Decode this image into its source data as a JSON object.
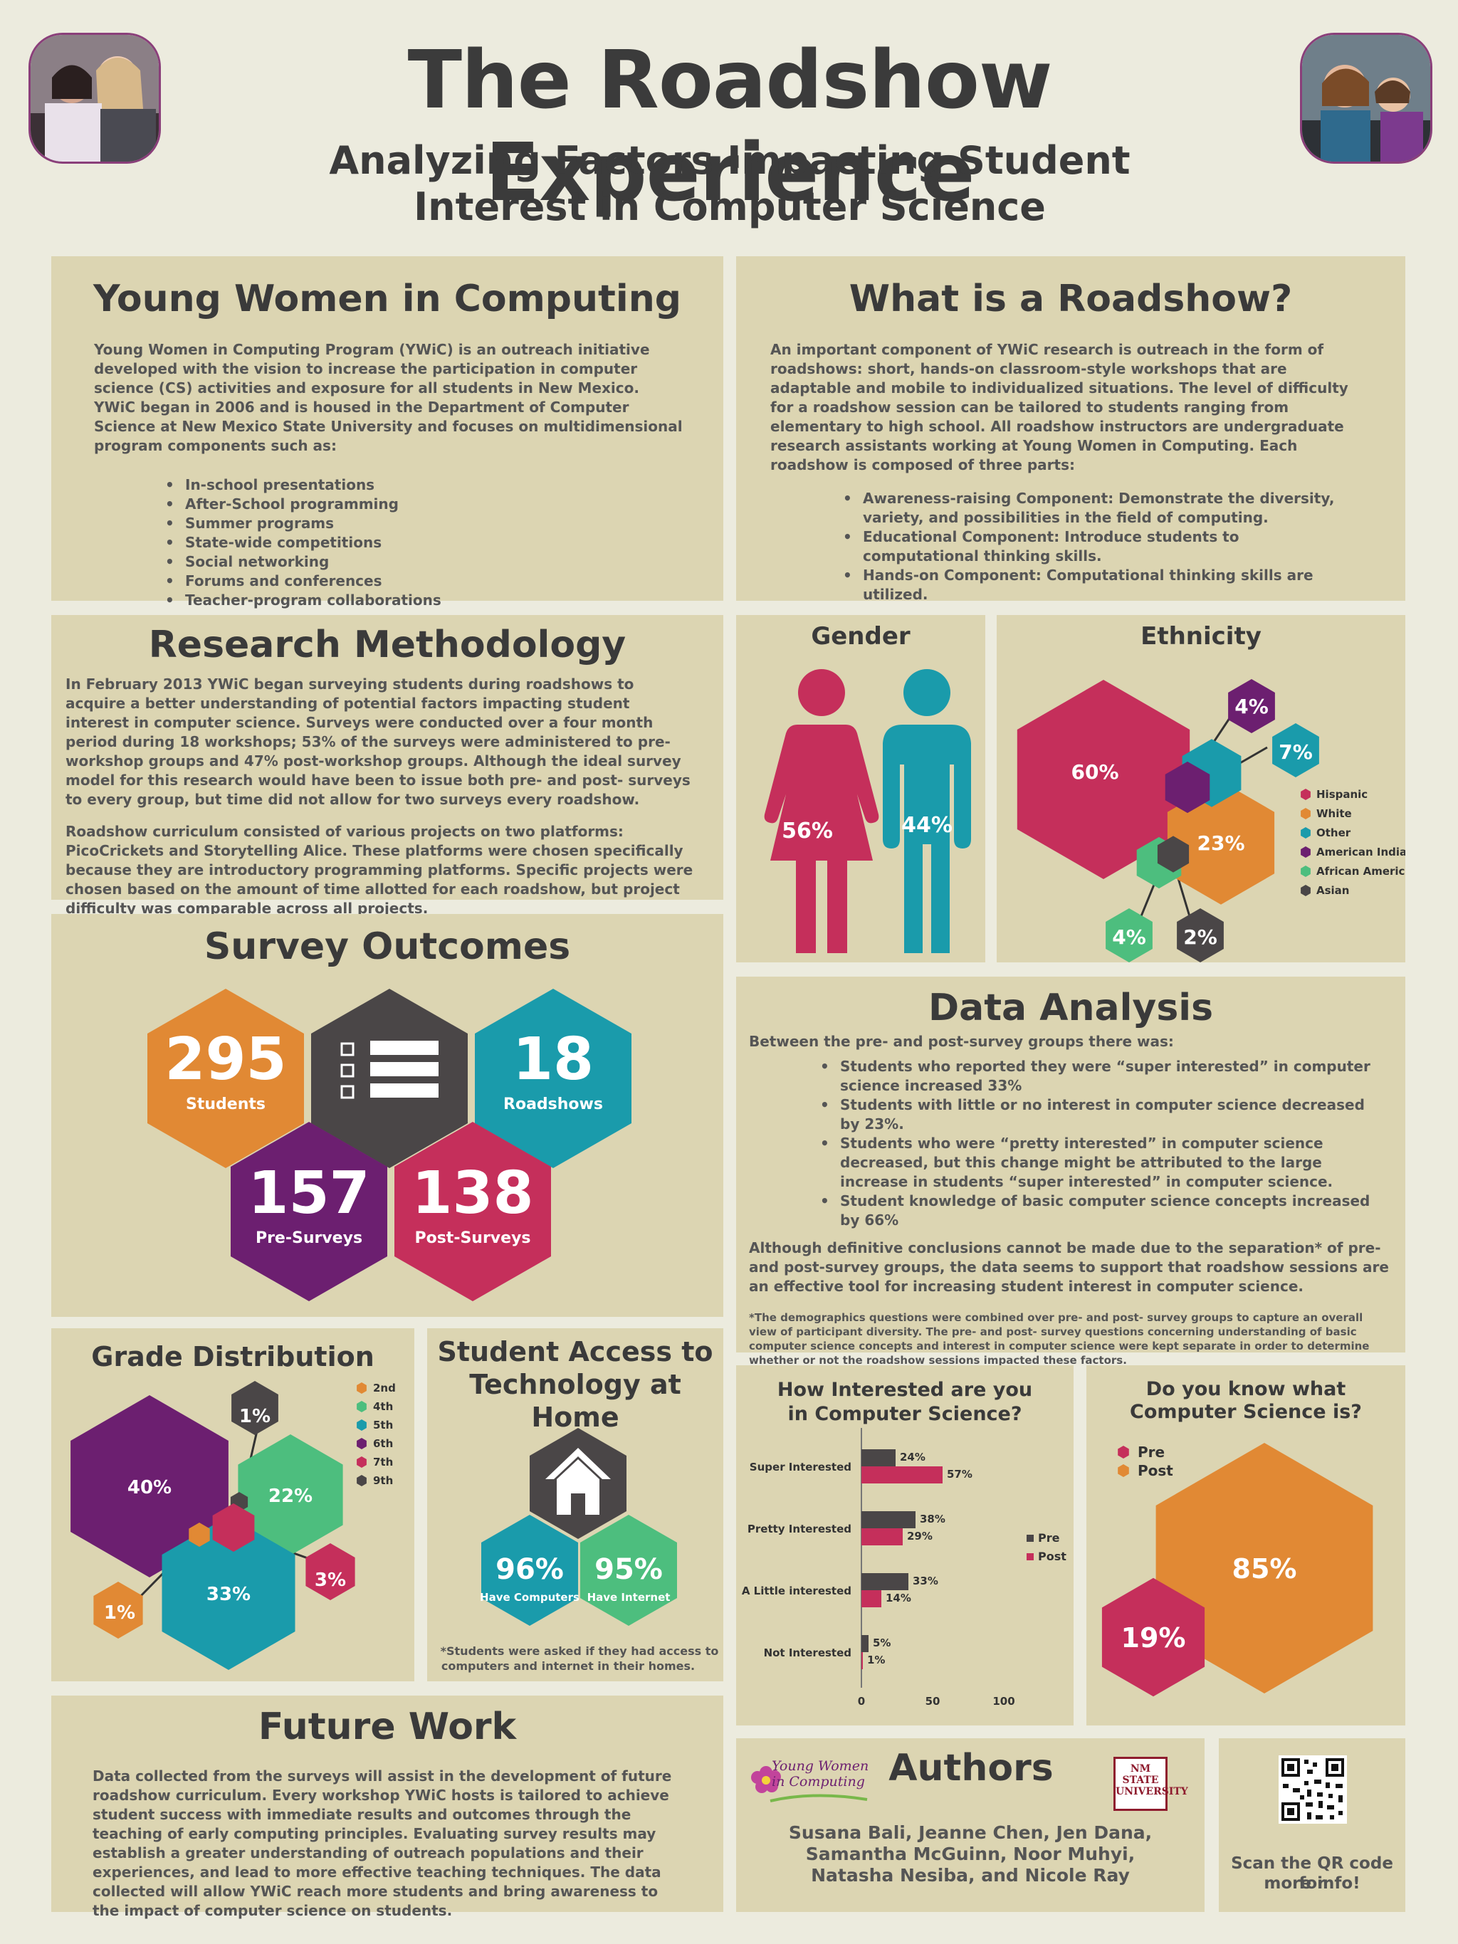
{
  "header": {
    "title": "The Roadshow Experience",
    "subtitle_line1": "Analyzing Factors Impacting Student",
    "subtitle_line2": "Interest in Computer Science"
  },
  "ywic": {
    "title": "Young Women in Computing",
    "paragraph": "Young Women in Computing Program (YWiC) is an outreach initiative developed with the vision to increase the participation in computer science (CS) activities and exposure for all students in New Mexico. YWiC began in 2006 and is housed in the Department of Computer Science at New Mexico State University and focuses on multidimensional program components such as:",
    "items": [
      "In-school presentations",
      "After-School programming",
      "Summer programs",
      "State-wide competitions",
      "Social networking",
      "Forums and conferences",
      "Teacher-program collaborations"
    ]
  },
  "roadshow": {
    "title": "What is a Roadshow?",
    "paragraph": "An important component of YWiC research is outreach in the form of roadshows: short, hands-on classroom-style workshops that are adaptable and mobile to individualized situations. The level of difficulty for a roadshow session can be tailored to students ranging from elementary to high school. All roadshow instructors are undergraduate research assistants working at Young Women in Computing. Each roadshow is composed of three parts:",
    "items": [
      "Awareness-raising Component: Demonstrate the diversity, variety, and possibilities in the field of computing.",
      "Educational Component: Introduce students to computational thinking skills.",
      "Hands-on Component: Computational thinking skills are utilized."
    ]
  },
  "methodology": {
    "title": "Research Methodology",
    "paragraph1": "In February 2013 YWiC began surveying students during roadshows to acquire a better understanding of potential factors impacting student interest in computer science. Surveys were conducted over a four month period during 18 workshops; 53% of the surveys were administered to pre-workshop groups and 47% post-workshop groups. Although the ideal survey model for this research would have been to issue both pre- and post- surveys to every group, but time did not allow for two surveys every roadshow.",
    "paragraph2": "Roadshow curriculum consisted of various projects on two platforms: PicoCrickets and Storytelling Alice. These platforms were chosen specifically because they are introductory programming platforms. Specific projects were chosen based on the amount of time allotted for each roadshow, but project difficulty was comparable across all projects."
  },
  "gender": {
    "title": "Gender",
    "female_label": "56%",
    "male_label": "44%"
  },
  "survey": {
    "title": "Survey Outcomes",
    "students_value": "295",
    "students_label": "Students",
    "roadshows_value": "18",
    "roadshows_label": "Roadshows",
    "pre_value": "157",
    "pre_label": "Pre-Surveys",
    "post_value": "138",
    "post_label": "Post-Surveys"
  },
  "analysis": {
    "title": "Data Analysis",
    "intro": "Between the pre- and post-survey groups there was:",
    "items": [
      "Students who reported they were “super interested” in computer science increased 33%",
      "Students with little or no interest in computer science decreased by 23%.",
      "Students who were “pretty interested” in computer science decreased, but this change might be attributed to the large increase in students “super interested” in computer science.",
      "Student knowledge of basic computer science concepts increased by 66%"
    ],
    "conclusion": "Although definitive conclusions cannot be made due to the separation* of pre- and post-survey groups, the data seems to support that roadshow sessions are an effective tool for increasing student interest in computer science.",
    "footnote": "*The demographics questions were combined over pre- and post- survey groups to capture an overall view of participant diversity. The pre- and post- survey questions concerning understanding of basic computer science concepts and interest in computer science were kept separate in order to determine whether or not the roadshow sessions impacted these factors."
  },
  "access": {
    "title_line1": "Student Access to",
    "title_line2": "Technology at Home",
    "computers_value": "96%",
    "computers_label": "Have Computers",
    "internet_value": "95%",
    "internet_label": "Have Internet",
    "footnote_line1": "*Students were asked if they had access to",
    "footnote_line2": "computers and internet in their homes."
  },
  "future": {
    "title": "Future Work",
    "paragraph": "Data collected  from the surveys will assist in the development of future roadshow curriculum. Every workshop YWiC hosts is tailored to achieve student success with immediate results and outcomes through the teaching of early computing principles. Evaluating survey results may establish a greater understanding of outreach populations and their experiences, and lead to more effective teaching techniques. The data collected will allow YWiC reach more students and bring awareness to the impact of computer science on students."
  },
  "authors": {
    "title": "Authors",
    "line1": "Susana Bali, Jeanne Chen, Jen Dana,",
    "line2": "Samantha McGuinn, Noor Muhyi,",
    "line3": "Natasha Nesiba, and Nicole Ray",
    "logo_ywic": "Young Women in Computing",
    "logo_nmsu": "NM STATE UNIVERSITY"
  },
  "qr": {
    "line1": "Scan the QR code for",
    "line2": "more info!"
  },
  "colors": {
    "crimson": "#c52f5b",
    "orange": "#e18934",
    "teal": "#1a9bab",
    "purple": "#6c1f70",
    "green": "#4dbe7e",
    "charcoal": "#4a4647",
    "panel": "#dcd5b2",
    "background": "#ecebde"
  },
  "chart_data": [
    {
      "type": "pie",
      "title": "Ethnicity",
      "categories": [
        "Hispanic",
        "White",
        "Other",
        "American Indian",
        "African American",
        "Asian"
      ],
      "values": [
        60,
        23,
        7,
        4,
        4,
        2
      ],
      "labels": [
        "60%",
        "23%",
        "7%",
        "4%",
        "4%",
        "2%"
      ],
      "legend_position": "right"
    },
    {
      "type": "pie",
      "title": "Grade Distribution",
      "categories": [
        "2nd",
        "4th",
        "5th",
        "6th",
        "7th",
        "9th"
      ],
      "values": [
        1,
        22,
        33,
        40,
        3,
        1
      ],
      "labels": [
        "1%",
        "22%",
        "33%",
        "40%",
        "3%",
        "1%"
      ],
      "legend_position": "right"
    },
    {
      "type": "bar",
      "title": "How Interested are you in Computer Science?",
      "categories": [
        "Super Interested",
        "Pretty Interested",
        "A Little interested",
        "Not Interested"
      ],
      "series": [
        {
          "name": "Pre",
          "values": [
            24,
            38,
            33,
            5
          ]
        },
        {
          "name": "Post",
          "values": [
            57,
            29,
            14,
            1
          ]
        }
      ],
      "value_labels": {
        "Pre": [
          "24%",
          "38%",
          "33%",
          "5%"
        ],
        "Post": [
          "57%",
          "29%",
          "14%",
          "1%"
        ]
      },
      "x_ticks": [
        "0",
        "50",
        "100"
      ],
      "xlim": [
        0,
        100
      ],
      "legend_position": "right"
    },
    {
      "type": "pie",
      "title": "Do you know what Computer Science is?",
      "categories": [
        "Pre",
        "Post"
      ],
      "values": [
        19,
        85
      ],
      "labels": [
        "19%",
        "85%"
      ],
      "legend_position": "top-left"
    }
  ]
}
